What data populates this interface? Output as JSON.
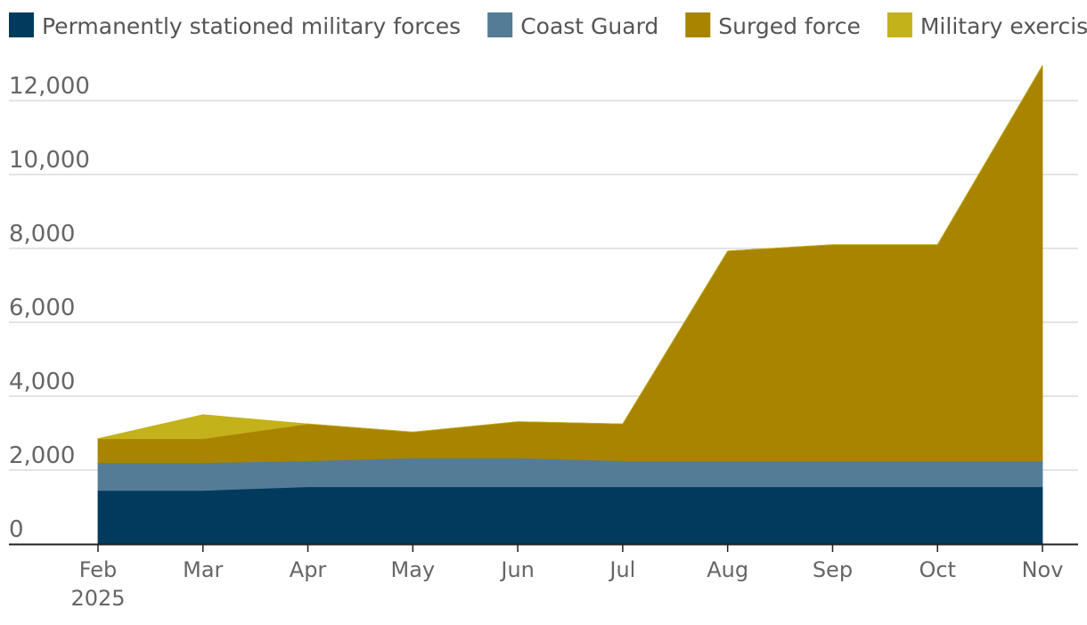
{
  "chart_data": {
    "type": "area",
    "stacked": true,
    "title": "",
    "xlabel": "",
    "ylabel": "",
    "ylim": [
      0,
      13000
    ],
    "yticks": [
      0,
      2000,
      4000,
      6000,
      8000,
      10000,
      12000
    ],
    "ytick_labels": [
      "0",
      "2,000",
      "4,000",
      "6,000",
      "8,000",
      "10,000",
      "12,000"
    ],
    "categories": [
      "Feb",
      "Mar",
      "Apr",
      "May",
      "Jun",
      "Jul",
      "Aug",
      "Sep",
      "Oct",
      "Nov"
    ],
    "category_sub": [
      "2025",
      "",
      "",
      "",
      "",
      "",
      "",
      "",
      "",
      ""
    ],
    "grid": true,
    "legend": "top",
    "series": [
      {
        "name": "Permanently stationed military forces",
        "color": "#003b5e",
        "values": [
          1450,
          1450,
          1550,
          1550,
          1550,
          1550,
          1550,
          1550,
          1550,
          1550
        ]
      },
      {
        "name": "Coast Guard",
        "color": "#547c97",
        "values": [
          750,
          750,
          700,
          780,
          780,
          700,
          700,
          700,
          700,
          700
        ]
      },
      {
        "name": "Surged force",
        "color": "#a88401",
        "values": [
          650,
          650,
          1000,
          700,
          980,
          1000,
          5680,
          5850,
          5850,
          10700
        ]
      },
      {
        "name": "Military exercise",
        "color": "#c4b21a",
        "values": [
          0,
          650,
          0,
          0,
          0,
          0,
          0,
          0,
          0,
          0
        ]
      }
    ]
  }
}
